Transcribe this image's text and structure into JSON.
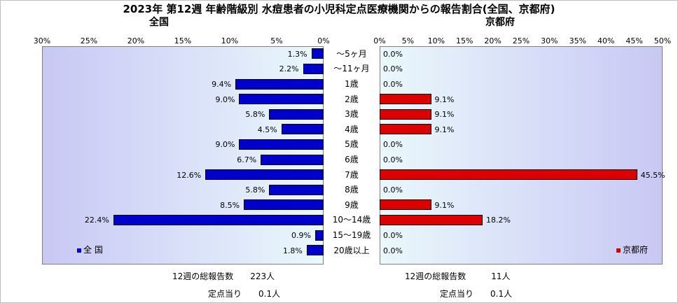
{
  "title": "2023年 第12週 年齢階級別 水痘患者の小児科定点医療機関からの報告割合(全国、京都府)",
  "chart_data": [
    {
      "type": "bar",
      "subtitle": "全国",
      "orientation": "horizontal-reversed",
      "xlim": [
        0,
        30
      ],
      "ticks": [
        "30%",
        "25%",
        "20%",
        "15%",
        "10%",
        "5%",
        "0%"
      ],
      "legend": "全 国",
      "color": "#0000cc",
      "categories": [
        "～5ヶ月",
        "～11ヶ月",
        "1歳",
        "2歳",
        "3歳",
        "4歳",
        "5歳",
        "6歳",
        "7歳",
        "8歳",
        "9歳",
        "10～14歳",
        "15～19歳",
        "20歳以上"
      ],
      "values": [
        1.3,
        2.2,
        9.4,
        9.0,
        5.8,
        4.5,
        9.0,
        6.7,
        12.6,
        5.8,
        8.5,
        22.4,
        0.9,
        1.8
      ],
      "value_labels": [
        "1.3%",
        "2.2%",
        "9.4%",
        "9.0%",
        "5.8%",
        "4.5%",
        "9.0%",
        "6.7%",
        "12.6%",
        "5.8%",
        "8.5%",
        "22.4%",
        "0.9%",
        "1.8%"
      ]
    },
    {
      "type": "bar",
      "subtitle": "京都府",
      "orientation": "horizontal",
      "xlim": [
        0,
        50
      ],
      "ticks": [
        "0%",
        "5%",
        "10%",
        "15%",
        "20%",
        "25%",
        "30%",
        "35%",
        "40%",
        "45%",
        "50%"
      ],
      "legend": "京都府",
      "color": "#dd0000",
      "categories": [
        "～5ヶ月",
        "～11ヶ月",
        "1歳",
        "2歳",
        "3歳",
        "4歳",
        "5歳",
        "6歳",
        "7歳",
        "8歳",
        "9歳",
        "10～14歳",
        "15～19歳",
        "20歳以上"
      ],
      "values": [
        0.0,
        0.0,
        0.0,
        9.1,
        9.1,
        9.1,
        0.0,
        0.0,
        45.5,
        0.0,
        9.1,
        18.2,
        0.0,
        0.0
      ],
      "value_labels": [
        "0.0%",
        "0.0%",
        "0.0%",
        "9.1%",
        "9.1%",
        "9.1%",
        "0.0%",
        "0.0%",
        "45.5%",
        "0.0%",
        "9.1%",
        "18.2%",
        "0.0%",
        "0.0%"
      ]
    }
  ],
  "footer": {
    "left_total": "12週の総報告数　　223人",
    "left_per": "定点当り　　0.1人",
    "right_total": "12週の総報告数　　　11人",
    "right_per": "定点当り　　0.1人"
  }
}
